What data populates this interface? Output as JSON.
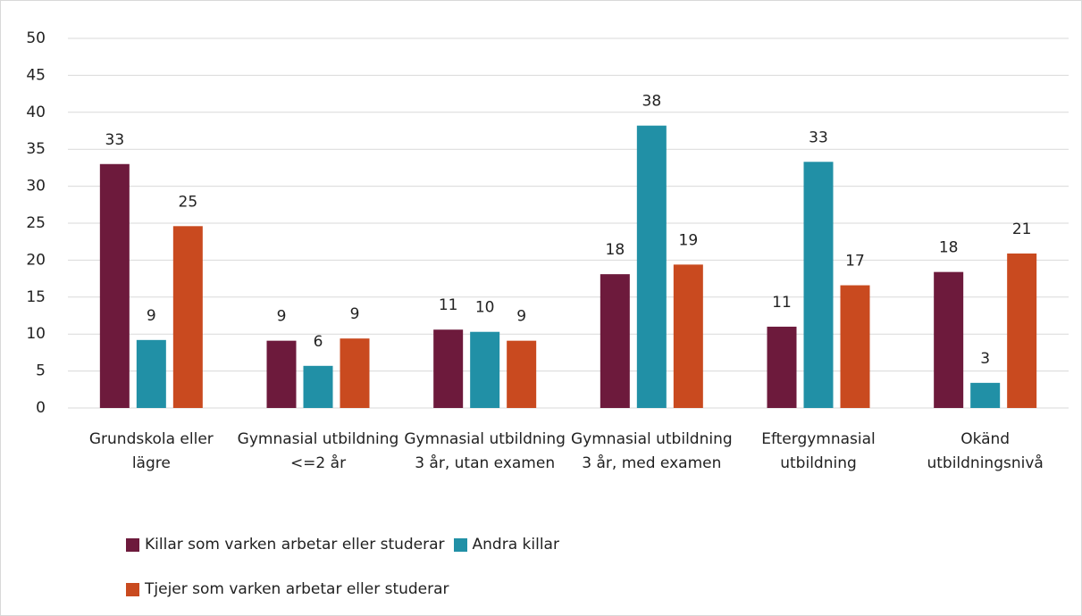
{
  "chart_data": {
    "type": "bar",
    "categories": [
      "Grundskola eller lägre",
      "Gymnasial utbildning <=2 år",
      "Gymnasial utbildning 3 år, utan examen",
      "Gymnasial utbildning 3 år, med examen",
      "Eftergymnasial utbildning",
      "Okänd utbildningsnivå"
    ],
    "series": [
      {
        "name": "Killar som varken arbetar eller studerar",
        "color": "#6d1a3c",
        "values": [
          33.0,
          9.1,
          10.6,
          18.1,
          11.0,
          18.4
        ],
        "value_labels": [
          "33",
          "9",
          "11",
          "18",
          "11",
          "18"
        ]
      },
      {
        "name": "Andra killar",
        "color": "#2190a6",
        "values": [
          9.2,
          5.7,
          10.3,
          38.2,
          33.3,
          3.4
        ],
        "value_labels": [
          "9",
          "6",
          "10",
          "38",
          "33",
          "3"
        ]
      },
      {
        "name": "Tjejer som varken arbetar eller studerar",
        "color": "#c94a1f",
        "values": [
          24.6,
          9.4,
          9.1,
          19.4,
          16.6,
          20.9
        ],
        "value_labels": [
          "25",
          "9",
          "9",
          "19",
          "17",
          "21"
        ]
      }
    ],
    "ylim": [
      0,
      50
    ],
    "yticks": [
      0,
      5,
      10,
      15,
      20,
      25,
      30,
      35,
      40,
      45,
      50
    ],
    "grid": true,
    "legend": "bottom"
  }
}
